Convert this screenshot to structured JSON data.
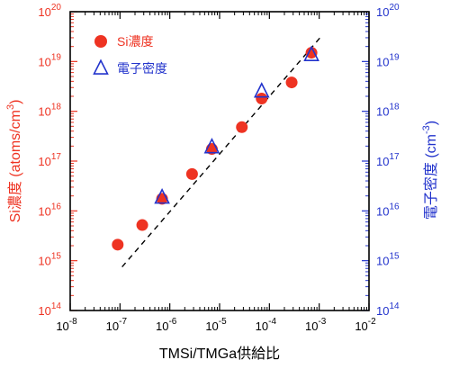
{
  "chart_data": {
    "type": "scatter",
    "title": "",
    "xlabel": "TMSi/TMGa供給比",
    "ylabel_left": "Si濃度 (atoms/cm",
    "ylabel_left_sup": "3",
    "ylabel_left_close": ")",
    "ylabel_right": "電子密度 (cm",
    "ylabel_right_sup": "-3",
    "ylabel_right_close": ")",
    "x_scale": "log",
    "y_scale": "log",
    "xlim": [
      1e-08,
      0.01
    ],
    "ylim": [
      100000000000000.0,
      1e+20
    ],
    "x_ticks": [
      {
        "value": 1e-08,
        "base": "10",
        "exp": "-8"
      },
      {
        "value": 1e-07,
        "base": "10",
        "exp": "-7"
      },
      {
        "value": 1e-06,
        "base": "10",
        "exp": "-6"
      },
      {
        "value": 1e-05,
        "base": "10",
        "exp": "-5"
      },
      {
        "value": 0.0001,
        "base": "10",
        "exp": "-4"
      },
      {
        "value": 0.001,
        "base": "10",
        "exp": "-3"
      },
      {
        "value": 0.01,
        "base": "10",
        "exp": "-2"
      }
    ],
    "y_ticks": [
      {
        "value": 100000000000000.0,
        "base": "10",
        "exp": "14"
      },
      {
        "value": 1000000000000000.0,
        "base": "10",
        "exp": "15"
      },
      {
        "value": 1e+16,
        "base": "10",
        "exp": "16"
      },
      {
        "value": 1e+17,
        "base": "10",
        "exp": "17"
      },
      {
        "value": 1e+18,
        "base": "10",
        "exp": "18"
      },
      {
        "value": 1e+19,
        "base": "10",
        "exp": "19"
      },
      {
        "value": 1e+20,
        "base": "10",
        "exp": "20"
      }
    ],
    "grid": false,
    "legend_position": "top-left",
    "series": [
      {
        "name": "Si濃度",
        "marker": "filled-circle",
        "color": "#ee3322",
        "axis": "left",
        "points": [
          {
            "x": 9e-08,
            "y": 2100000000000000.0
          },
          {
            "x": 2.8e-07,
            "y": 5200000000000000.0
          },
          {
            "x": 7e-07,
            "y": 1.75e+16
          },
          {
            "x": 2.8e-06,
            "y": 5.5e+16
          },
          {
            "x": 7e-06,
            "y": 1.75e+17
          },
          {
            "x": 2.8e-05,
            "y": 4.8e+17
          },
          {
            "x": 7e-05,
            "y": 1.8e+18
          },
          {
            "x": 0.00028,
            "y": 3.8e+18
          },
          {
            "x": 0.0007,
            "y": 1.5e+19
          }
        ]
      },
      {
        "name": "電子密度",
        "marker": "open-triangle",
        "color": "#2233cc",
        "axis": "right",
        "points": [
          {
            "x": 7e-07,
            "y": 1.85e+16
          },
          {
            "x": 7e-06,
            "y": 1.9e+17
          },
          {
            "x": 7e-05,
            "y": 2.5e+18
          },
          {
            "x": 0.0007,
            "y": 1.35e+19
          }
        ]
      }
    ],
    "fit_line": {
      "style": "dashed",
      "color": "#000000",
      "from": {
        "x": 1.1e-07,
        "y": 750000000000000.0
      },
      "to": {
        "x": 0.0011,
        "y": 3.2e+19
      }
    },
    "colors": {
      "left_axis": "#ee3322",
      "right_axis": "#2233cc",
      "x_axis": "#000000"
    }
  }
}
